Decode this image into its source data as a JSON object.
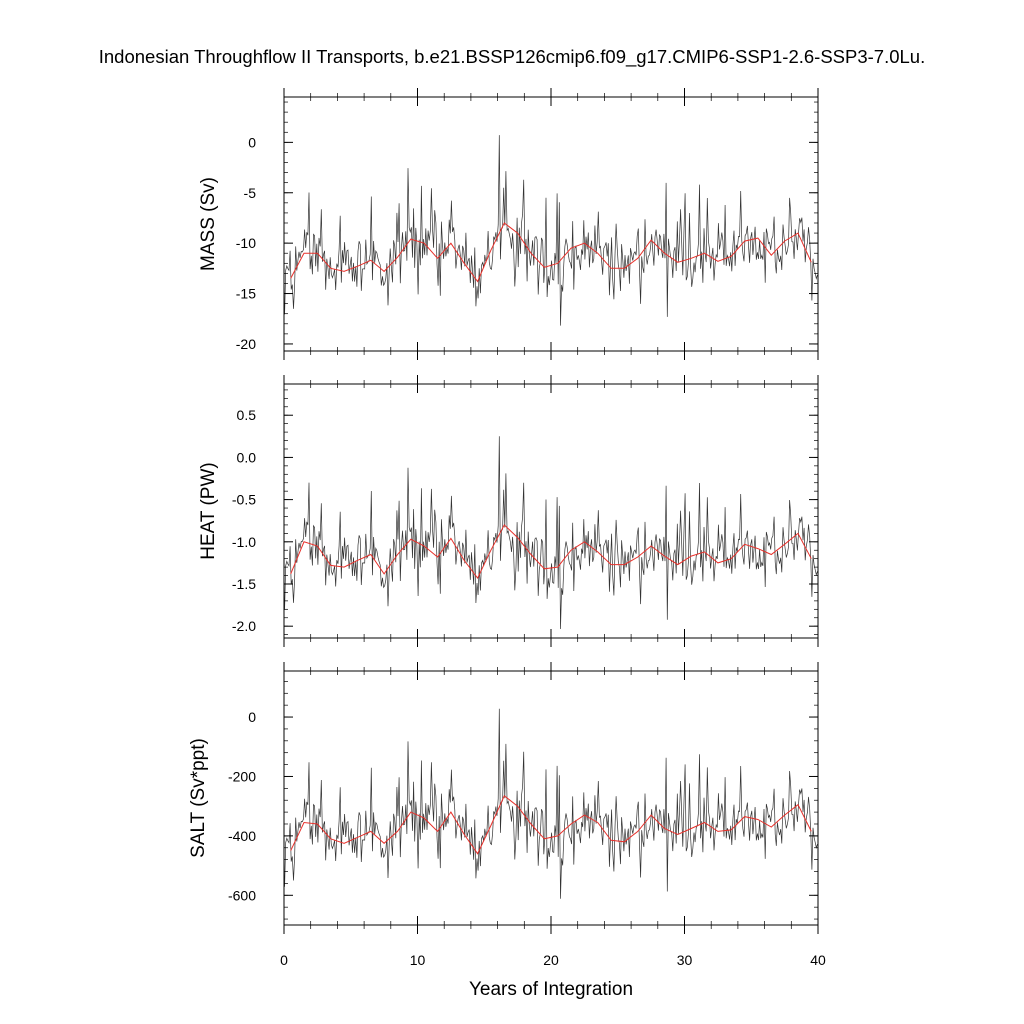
{
  "title": "Indonesian Throughflow II Transports, b.e21.BSSP126cmip6.f09_g17.CMIP6-SSP1-2.6-SSP3-7.0Lu.",
  "chart_data": {
    "type": "line",
    "xlabel": "Years of Integration",
    "xlim": [
      0,
      40
    ],
    "xticks": [
      0,
      10,
      20,
      30,
      40
    ],
    "panels": [
      {
        "ylabel": "MASS (Sv)",
        "ylim": [
          -20.7,
          4.5
        ],
        "yticks": [
          0,
          -5,
          -10,
          -15,
          -20
        ],
        "tick_labels": [
          "0",
          "-5",
          "-10",
          "-15",
          "-20"
        ],
        "annual_mean": {
          "x": [
            0.5,
            1.5,
            2.5,
            3.5,
            4.5,
            5.5,
            6.5,
            7.5,
            8.5,
            9.5,
            10.5,
            11.5,
            12.5,
            13.5,
            14.5,
            15.5,
            16.5,
            17.5,
            18.5,
            19.5,
            20.5,
            21.5,
            22.5,
            23.5,
            24.5,
            25.5,
            26.5,
            27.5,
            28.5,
            29.5,
            30.5,
            31.5,
            32.5,
            33.5,
            34.5,
            35.5,
            36.5,
            37.5,
            38.5,
            39.5
          ],
          "y": [
            -13.5,
            -11.0,
            -11.0,
            -12.5,
            -12.8,
            -12.3,
            -11.7,
            -12.8,
            -11.4,
            -9.6,
            -10.0,
            -11.5,
            -10.0,
            -12.0,
            -13.8,
            -10.7,
            -8.0,
            -9.0,
            -11.0,
            -12.4,
            -12.0,
            -10.5,
            -10.0,
            -11.0,
            -12.5,
            -12.5,
            -11.5,
            -9.7,
            -11.0,
            -11.9,
            -11.5,
            -11.0,
            -11.8,
            -11.3,
            -9.8,
            -9.5,
            -11.2,
            -9.8,
            -9.0,
            -11.9
          ]
        }
      },
      {
        "ylabel": "HEAT (PW)",
        "ylim": [
          -2.14,
          0.87
        ],
        "yticks": [
          0.5,
          0.0,
          -0.5,
          -1.0,
          -1.5,
          -2.0
        ],
        "tick_labels": [
          "0.5",
          "0.0",
          "-0.5",
          "-1.0",
          "-1.5",
          "-2.0"
        ],
        "annual_mean": {
          "x": [
            0.5,
            1.5,
            2.5,
            3.5,
            4.5,
            5.5,
            6.5,
            7.5,
            8.5,
            9.5,
            10.5,
            11.5,
            12.5,
            13.5,
            14.5,
            15.5,
            16.5,
            17.5,
            18.5,
            19.5,
            20.5,
            21.5,
            22.5,
            23.5,
            24.5,
            25.5,
            26.5,
            27.5,
            28.5,
            29.5,
            30.5,
            31.5,
            32.5,
            33.5,
            34.5,
            35.5,
            36.5,
            37.5,
            38.5,
            39.5
          ],
          "y": [
            -1.38,
            -1.0,
            -1.05,
            -1.28,
            -1.3,
            -1.22,
            -1.15,
            -1.38,
            -1.15,
            -0.97,
            -1.05,
            -1.18,
            -0.96,
            -1.22,
            -1.43,
            -1.1,
            -0.8,
            -0.95,
            -1.15,
            -1.32,
            -1.3,
            -1.1,
            -1.0,
            -1.12,
            -1.27,
            -1.27,
            -1.18,
            -1.05,
            -1.17,
            -1.27,
            -1.17,
            -1.12,
            -1.25,
            -1.2,
            -1.03,
            -1.08,
            -1.15,
            -1.03,
            -0.9,
            -1.2
          ]
        }
      },
      {
        "ylabel": "SALT (Sv*ppt)",
        "ylim": [
          -700,
          155
        ],
        "yticks": [
          0,
          -200,
          -400,
          -600
        ],
        "tick_labels": [
          "0",
          "-200",
          "-400",
          "-600"
        ],
        "annual_mean": {
          "x": [
            0.5,
            1.5,
            2.5,
            3.5,
            4.5,
            5.5,
            6.5,
            7.5,
            8.5,
            9.5,
            10.5,
            11.5,
            12.5,
            13.5,
            14.5,
            15.5,
            16.5,
            17.5,
            18.5,
            19.5,
            20.5,
            21.5,
            22.5,
            23.5,
            24.5,
            25.5,
            26.5,
            27.5,
            28.5,
            29.5,
            30.5,
            31.5,
            32.5,
            33.5,
            34.5,
            35.5,
            36.5,
            37.5,
            38.5,
            39.5
          ],
          "y": [
            -450,
            -355,
            -360,
            -410,
            -425,
            -405,
            -385,
            -425,
            -385,
            -320,
            -340,
            -385,
            -320,
            -395,
            -460,
            -365,
            -265,
            -300,
            -360,
            -410,
            -400,
            -360,
            -330,
            -355,
            -415,
            -420,
            -385,
            -330,
            -375,
            -395,
            -375,
            -355,
            -385,
            -380,
            -335,
            -345,
            -370,
            -330,
            -295,
            -385
          ]
        }
      }
    ]
  }
}
